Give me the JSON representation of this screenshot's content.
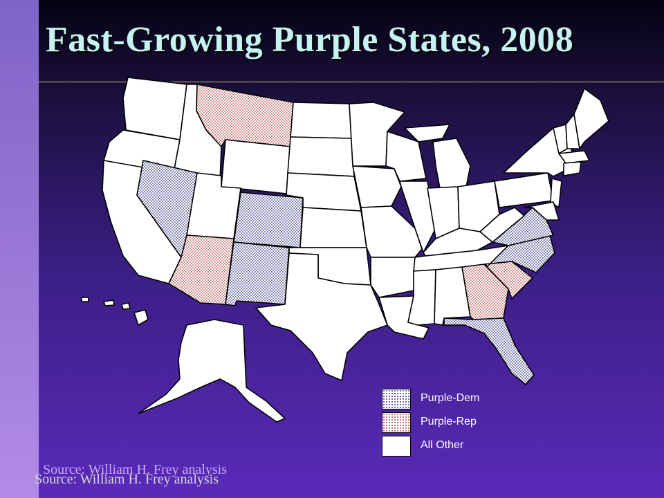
{
  "slide": {
    "title": "Fast-Growing  Purple States, 2008",
    "source_1": "Source: William H. Frey analysis",
    "source_2": "Source: William H. Frey analysis"
  },
  "legend": [
    {
      "label": "Purple-Dem",
      "key": "purple-dem"
    },
    {
      "label": "Purple-Rep",
      "key": "purple-rep"
    },
    {
      "label": "All Other",
      "key": "other"
    }
  ],
  "colors": {
    "purple_dem": "#d6d6ec",
    "purple_rep": "#f5d2d2",
    "other": "#ffffff"
  },
  "states": {
    "purple_dem": [
      "Nevada",
      "Colorado",
      "New Mexico",
      "Virginia",
      "North Carolina",
      "Florida"
    ],
    "purple_rep": [
      "Montana",
      "Arizona",
      "Georgia",
      "South Carolina"
    ]
  }
}
